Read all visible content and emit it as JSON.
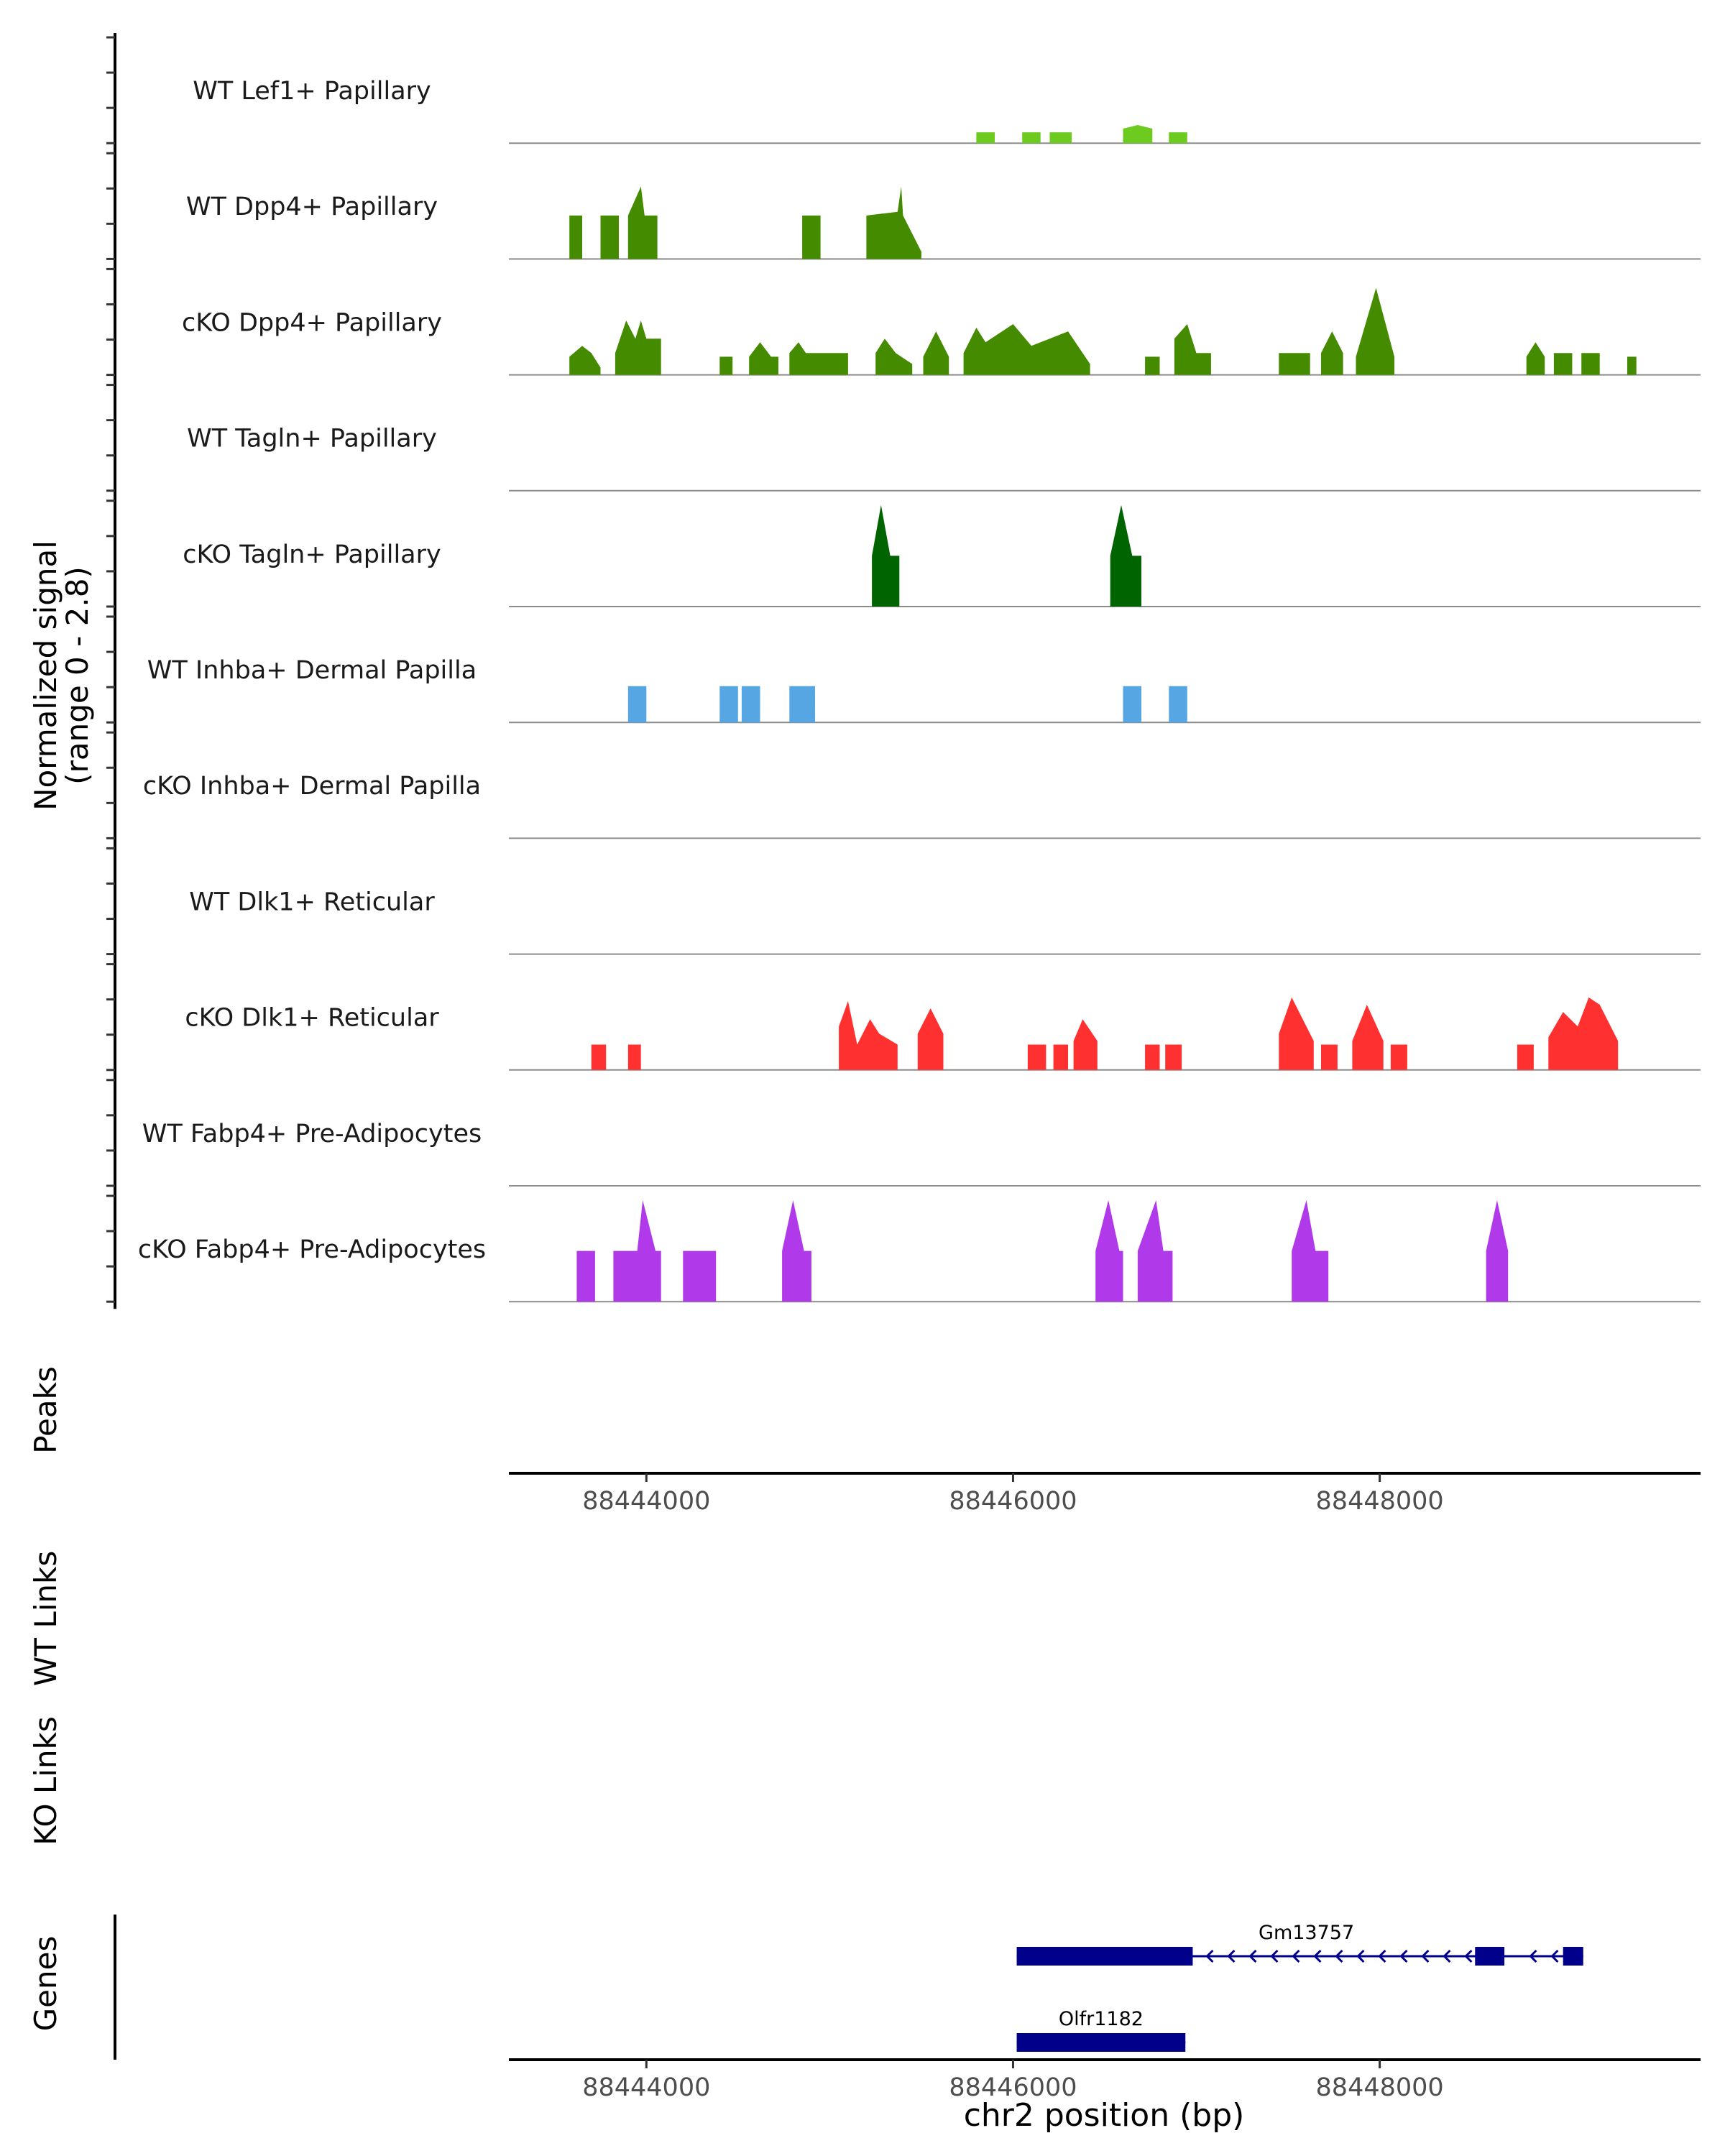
{
  "chart_data": {
    "type": "area",
    "description_free": true,
    "y_axis_title_line1": "Normalized signal",
    "y_axis_title_line2": "(range 0 - 2.8)",
    "ylim": [
      0,
      2.8
    ],
    "xlim": [
      88443250,
      88449750
    ],
    "xlabel": "chr2 position (bp)",
    "x_ticks": [
      88444000,
      88446000,
      88448000
    ],
    "x_tick_labels": [
      "88444000",
      "88446000",
      "88448000"
    ],
    "panel_labels": {
      "peaks": "Peaks",
      "wt_links": "WT Links",
      "ko_links": "KO Links",
      "genes": "Genes"
    },
    "tracks": [
      {
        "name": "WT Lef1+ Papillary",
        "color": "#6CCB1E",
        "segments": [
          [
            [
              88445800,
              0.3
            ],
            [
              88445900,
              0.3
            ]
          ],
          [
            [
              88446050,
              0.3
            ],
            [
              88446150,
              0.3
            ]
          ],
          [
            [
              88446200,
              0.3
            ],
            [
              88446320,
              0.3
            ]
          ],
          [
            [
              88446600,
              0.4
            ],
            [
              88446680,
              0.5
            ],
            [
              88446760,
              0.4
            ]
          ],
          [
            [
              88446850,
              0.3
            ],
            [
              88446950,
              0.3
            ]
          ]
        ]
      },
      {
        "name": "WT Dpp4+ Papillary",
        "color": "#458B00",
        "segments": [
          [
            [
              88443580,
              1.2
            ],
            [
              88443650,
              1.2
            ]
          ],
          [
            [
              88443750,
              1.2
            ],
            [
              88443850,
              1.2
            ]
          ],
          [
            [
              88443900,
              1.2
            ],
            [
              88443970,
              2.0
            ],
            [
              88443990,
              1.2
            ],
            [
              88444060,
              1.2
            ]
          ],
          [
            [
              88444850,
              1.2
            ],
            [
              88444950,
              1.2
            ]
          ],
          [
            [
              88445200,
              1.2
            ],
            [
              88445370,
              1.3
            ],
            [
              88445390,
              2.0
            ],
            [
              88445400,
              1.2
            ],
            [
              88445500,
              0.2
            ]
          ]
        ]
      },
      {
        "name": "cKO Dpp4+ Papillary",
        "color": "#458B00",
        "segments": [
          [
            [
              88443580,
              0.5
            ],
            [
              88443650,
              0.8
            ],
            [
              88443700,
              0.6
            ],
            [
              88443750,
              0.2
            ]
          ],
          [
            [
              88443830,
              0.6
            ],
            [
              88443890,
              1.5
            ],
            [
              88443940,
              1.0
            ],
            [
              88443970,
              1.5
            ],
            [
              88444000,
              1.0
            ],
            [
              88444080,
              1.0
            ]
          ],
          [
            [
              88444400,
              0.5
            ],
            [
              88444470,
              0.5
            ]
          ],
          [
            [
              88444560,
              0.5
            ],
            [
              88444620,
              0.9
            ],
            [
              88444680,
              0.5
            ],
            [
              88444720,
              0.5
            ]
          ],
          [
            [
              88444780,
              0.6
            ],
            [
              88444830,
              0.9
            ],
            [
              88444870,
              0.6
            ],
            [
              88445100,
              0.6
            ]
          ],
          [
            [
              88445250,
              0.6
            ],
            [
              88445300,
              1.0
            ],
            [
              88445360,
              0.6
            ],
            [
              88445450,
              0.3
            ]
          ],
          [
            [
              88445510,
              0.5
            ],
            [
              88445580,
              1.2
            ],
            [
              88445650,
              0.5
            ]
          ],
          [
            [
              88445730,
              0.6
            ],
            [
              88445800,
              1.3
            ],
            [
              88445850,
              0.9
            ],
            [
              88446000,
              1.4
            ],
            [
              88446100,
              0.8
            ],
            [
              88446200,
              1.0
            ],
            [
              88446300,
              1.2
            ],
            [
              88446420,
              0.3
            ]
          ],
          [
            [
              88446720,
              0.5
            ],
            [
              88446800,
              0.5
            ]
          ],
          [
            [
              88446880,
              1.0
            ],
            [
              88446950,
              1.4
            ],
            [
              88447000,
              0.6
            ],
            [
              88447080,
              0.6
            ]
          ],
          [
            [
              88447450,
              0.6
            ],
            [
              88447620,
              0.6
            ]
          ],
          [
            [
              88447680,
              0.6
            ],
            [
              88447740,
              1.2
            ],
            [
              88447800,
              0.6
            ]
          ],
          [
            [
              88447870,
              0.5
            ],
            [
              88447980,
              2.4
            ],
            [
              88448080,
              0.5
            ]
          ],
          [
            [
              88448800,
              0.5
            ],
            [
              88448850,
              0.9
            ],
            [
              88448900,
              0.5
            ]
          ],
          [
            [
              88448950,
              0.6
            ],
            [
              88449050,
              0.6
            ]
          ],
          [
            [
              88449100,
              0.6
            ],
            [
              88449200,
              0.6
            ]
          ],
          [
            [
              88449350,
              0.5
            ],
            [
              88449400,
              0.5
            ]
          ]
        ]
      },
      {
        "name": "WT Tagln+ Papillary",
        "color": "#006400",
        "segments": []
      },
      {
        "name": "cKO Tagln+ Papillary",
        "color": "#006400",
        "segments": [
          [
            [
              88445230,
              1.4
            ],
            [
              88445280,
              2.8
            ],
            [
              88445330,
              1.4
            ],
            [
              88445380,
              1.4
            ]
          ],
          [
            [
              88446530,
              1.4
            ],
            [
              88446590,
              2.8
            ],
            [
              88446650,
              1.4
            ],
            [
              88446700,
              1.4
            ]
          ]
        ]
      },
      {
        "name": "WT Inhba+ Dermal Papilla",
        "color": "#56A6E3",
        "segments": [
          [
            [
              88443900,
              1.0
            ],
            [
              88444000,
              1.0
            ]
          ],
          [
            [
              88444400,
              1.0
            ],
            [
              88444500,
              1.0
            ]
          ],
          [
            [
              88444520,
              1.0
            ],
            [
              88444620,
              1.0
            ]
          ],
          [
            [
              88444780,
              1.0
            ],
            [
              88444920,
              1.0
            ]
          ],
          [
            [
              88446600,
              1.0
            ],
            [
              88446700,
              1.0
            ]
          ],
          [
            [
              88446850,
              1.0
            ],
            [
              88446950,
              1.0
            ]
          ]
        ]
      },
      {
        "name": "cKO Inhba+ Dermal Papilla",
        "color": "#56A6E3",
        "segments": []
      },
      {
        "name": "WT Dlk1+ Reticular",
        "color": "#FF3030",
        "segments": []
      },
      {
        "name": "cKO Dlk1+ Reticular",
        "color": "#FF3030",
        "segments": [
          [
            [
              88443700,
              0.7
            ],
            [
              88443780,
              0.7
            ]
          ],
          [
            [
              88443900,
              0.7
            ],
            [
              88443970,
              0.7
            ]
          ],
          [
            [
              88445050,
              1.2
            ],
            [
              88445100,
              1.9
            ],
            [
              88445150,
              0.7
            ],
            [
              88445220,
              1.4
            ],
            [
              88445270,
              1.0
            ],
            [
              88445370,
              0.7
            ]
          ],
          [
            [
              88445480,
              1.0
            ],
            [
              88445550,
              1.7
            ],
            [
              88445620,
              1.0
            ]
          ],
          [
            [
              88446080,
              0.7
            ],
            [
              88446180,
              0.7
            ]
          ],
          [
            [
              88446220,
              0.7
            ],
            [
              88446300,
              0.7
            ]
          ],
          [
            [
              88446330,
              0.8
            ],
            [
              88446380,
              1.4
            ],
            [
              88446460,
              0.8
            ]
          ],
          [
            [
              88446720,
              0.7
            ],
            [
              88446800,
              0.7
            ]
          ],
          [
            [
              88446830,
              0.7
            ],
            [
              88446920,
              0.7
            ]
          ],
          [
            [
              88447450,
              1.0
            ],
            [
              88447520,
              2.0
            ],
            [
              88447640,
              0.8
            ]
          ],
          [
            [
              88447680,
              0.7
            ],
            [
              88447770,
              0.7
            ]
          ],
          [
            [
              88447850,
              0.8
            ],
            [
              88447930,
              1.8
            ],
            [
              88448020,
              0.8
            ]
          ],
          [
            [
              88448060,
              0.7
            ],
            [
              88448150,
              0.7
            ]
          ],
          [
            [
              88448750,
              0.7
            ],
            [
              88448840,
              0.7
            ]
          ],
          [
            [
              88448920,
              0.9
            ],
            [
              88449000,
              1.6
            ],
            [
              88449080,
              1.2
            ],
            [
              88449140,
              2.0
            ],
            [
              88449200,
              1.8
            ],
            [
              88449300,
              0.8
            ]
          ]
        ]
      },
      {
        "name": "WT Fabp4+ Pre-Adipocytes",
        "color": "#B03AEA",
        "segments": []
      },
      {
        "name": "cKO Fabp4+ Pre-Adipocytes",
        "color": "#B03AEA",
        "segments": [
          [
            [
              88443620,
              1.4
            ],
            [
              88443720,
              1.4
            ]
          ],
          [
            [
              88443820,
              1.4
            ],
            [
              88443950,
              1.4
            ],
            [
              88443980,
              2.8
            ],
            [
              88444050,
              1.4
            ],
            [
              88444080,
              1.4
            ]
          ],
          [
            [
              88444200,
              1.4
            ],
            [
              88444380,
              1.4
            ]
          ],
          [
            [
              88444740,
              1.4
            ],
            [
              88444800,
              2.8
            ],
            [
              88444860,
              1.4
            ],
            [
              88444900,
              1.4
            ]
          ],
          [
            [
              88446450,
              1.4
            ],
            [
              88446520,
              2.8
            ],
            [
              88446580,
              1.4
            ],
            [
              88446600,
              1.4
            ]
          ],
          [
            [
              88446680,
              1.4
            ],
            [
              88446780,
              2.8
            ],
            [
              88446820,
              1.4
            ],
            [
              88446870,
              1.4
            ]
          ],
          [
            [
              88447520,
              1.4
            ],
            [
              88447600,
              2.8
            ],
            [
              88447650,
              1.4
            ],
            [
              88447720,
              1.4
            ]
          ],
          [
            [
              88448580,
              1.4
            ],
            [
              88448640,
              2.8
            ],
            [
              88448700,
              1.4
            ]
          ]
        ]
      }
    ],
    "genes": [
      {
        "name": "Gm13757",
        "strand": "-",
        "start": 88446020,
        "end": 88449110,
        "exons": [
          [
            88446020,
            88446980
          ],
          [
            88448520,
            88448680
          ],
          [
            88449000,
            88449110
          ]
        ]
      },
      {
        "name": "Olfr1182",
        "strand": "+",
        "start": 88446020,
        "end": 88446940,
        "exons": [
          [
            88446020,
            88446940
          ]
        ]
      }
    ]
  }
}
